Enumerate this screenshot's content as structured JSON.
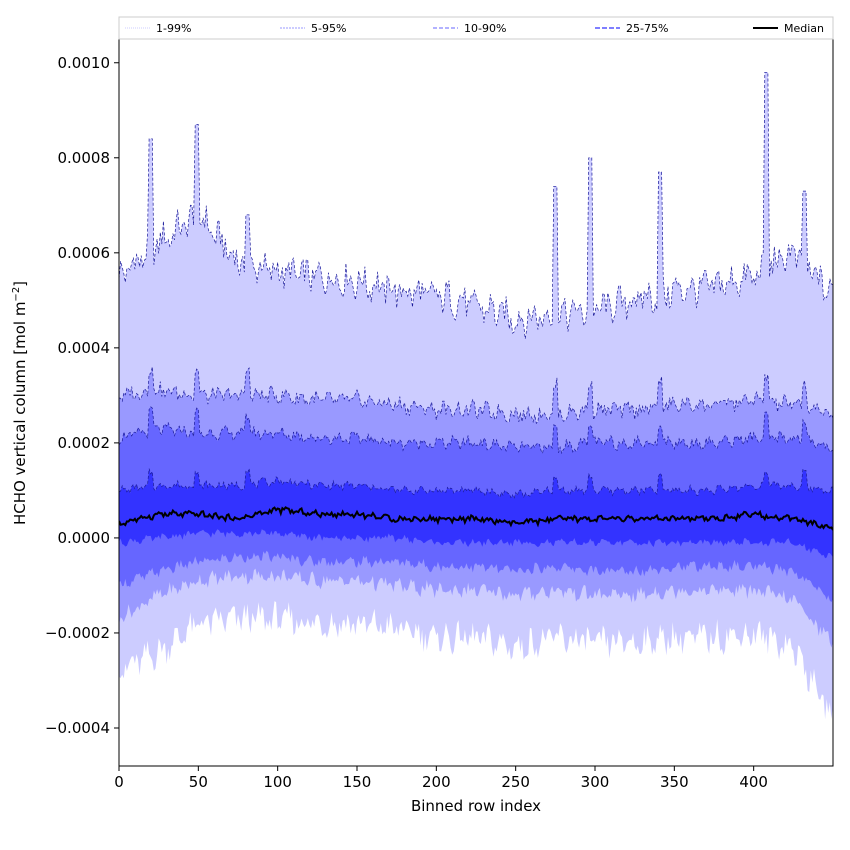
{
  "chart_data": {
    "type": "area",
    "xlabel": "Binned row index",
    "ylabel": "HCHO vertical column [mol m",
    "ylabel_sup": "−2",
    "ylabel_close": "]",
    "xlim": [
      0,
      450
    ],
    "ylim": [
      -0.00048,
      0.00105
    ],
    "xticks": [
      0,
      50,
      100,
      150,
      200,
      250,
      300,
      350,
      400
    ],
    "xtick_labels": [
      "0",
      "50",
      "100",
      "150",
      "200",
      "250",
      "300",
      "350",
      "400"
    ],
    "yticks": [
      -0.0004,
      -0.0002,
      0.0,
      0.0002,
      0.0004,
      0.0006,
      0.0008,
      0.001
    ],
    "ytick_labels": [
      "−0.0004",
      "−0.0002",
      "0.0000",
      "0.0002",
      "0.0004",
      "0.0006",
      "0.0008",
      "0.0010"
    ],
    "legend_position": "top",
    "series": [
      {
        "name": "1-99%",
        "color": "#ccccff",
        "x": [
          0,
          25,
          50,
          75,
          100,
          125,
          150,
          175,
          200,
          225,
          250,
          275,
          300,
          325,
          350,
          375,
          400,
          425,
          450
        ],
        "upper": [
          0.00055,
          0.00062,
          0.00068,
          0.00058,
          0.00056,
          0.00055,
          0.00054,
          0.00052,
          0.00051,
          0.00049,
          0.00046,
          0.00047,
          0.00048,
          0.0005,
          0.00052,
          0.00053,
          0.00055,
          0.0006,
          0.00051
        ],
        "lower": [
          -0.00028,
          -0.00024,
          -0.00018,
          -0.00017,
          -0.00017,
          -0.00018,
          -0.00018,
          -0.00019,
          -0.00021,
          -0.00021,
          -0.00023,
          -0.00021,
          -0.00022,
          -0.00022,
          -0.00021,
          -0.00021,
          -0.0002,
          -0.00023,
          -0.00038
        ]
      },
      {
        "name": "5-95%",
        "color": "#9999ff",
        "x": [
          0,
          25,
          50,
          75,
          100,
          125,
          150,
          175,
          200,
          225,
          250,
          275,
          300,
          325,
          350,
          375,
          400,
          425,
          450
        ],
        "upper": [
          0.0003,
          0.00031,
          0.0003,
          0.0003,
          0.0003,
          0.00029,
          0.00029,
          0.00028,
          0.00027,
          0.00027,
          0.00026,
          0.00026,
          0.00027,
          0.00027,
          0.00028,
          0.00028,
          0.00029,
          0.00028,
          0.00026
        ],
        "lower": [
          -0.00017,
          -0.00012,
          -9e-05,
          -8e-05,
          -8e-05,
          -9e-05,
          -9e-05,
          -0.0001,
          -0.00011,
          -0.00011,
          -0.00012,
          -0.00011,
          -0.00012,
          -0.00012,
          -0.00011,
          -0.00011,
          -0.00011,
          -0.00013,
          -0.00022
        ]
      },
      {
        "name": "10-90%",
        "color": "#6666ff",
        "x": [
          0,
          25,
          50,
          75,
          100,
          125,
          150,
          175,
          200,
          225,
          250,
          275,
          300,
          325,
          350,
          375,
          400,
          425,
          450
        ],
        "upper": [
          0.00021,
          0.00023,
          0.00022,
          0.00022,
          0.00022,
          0.00021,
          0.00021,
          0.0002,
          0.0002,
          0.0002,
          0.00019,
          0.00019,
          0.0002,
          0.0002,
          0.0002,
          0.0002,
          0.00021,
          0.00021,
          0.00019
        ],
        "lower": [
          -0.0001,
          -7e-05,
          -5e-05,
          -4e-05,
          -4e-05,
          -5e-05,
          -5e-05,
          -5e-05,
          -6e-05,
          -6e-05,
          -7e-05,
          -6e-05,
          -7e-05,
          -7e-05,
          -6e-05,
          -6e-05,
          -6e-05,
          -7e-05,
          -0.00013
        ]
      },
      {
        "name": "25-75%",
        "color": "#3333ff",
        "x": [
          0,
          25,
          50,
          75,
          100,
          125,
          150,
          175,
          200,
          225,
          250,
          275,
          300,
          325,
          350,
          375,
          400,
          425,
          450
        ],
        "upper": [
          0.0001,
          0.00011,
          0.00011,
          0.00011,
          0.00012,
          0.00011,
          0.00011,
          0.0001,
          0.0001,
          0.0001,
          9e-05,
          0.0001,
          0.0001,
          0.0001,
          0.0001,
          0.0001,
          0.00011,
          0.00011,
          0.0001
        ],
        "lower": [
          -1e-05,
          0.0,
          1e-05,
          1e-05,
          1e-05,
          0.0,
          0.0,
          0.0,
          -1e-05,
          -1e-05,
          -1e-05,
          -1e-05,
          -1e-05,
          -1e-05,
          -1e-05,
          -1e-05,
          -1e-05,
          -1e-05,
          -4e-05
        ]
      },
      {
        "name": "Median",
        "color": "#000000",
        "x": [
          0,
          25,
          50,
          75,
          100,
          125,
          150,
          175,
          200,
          225,
          250,
          275,
          300,
          325,
          350,
          375,
          400,
          425,
          450
        ],
        "values": [
          3e-05,
          5e-05,
          5e-05,
          4e-05,
          6e-05,
          5e-05,
          5e-05,
          4e-05,
          4e-05,
          4e-05,
          3e-05,
          4e-05,
          4e-05,
          4e-05,
          4e-05,
          4e-05,
          5e-05,
          4e-05,
          2e-05
        ]
      }
    ],
    "spikes": [
      {
        "x": 20,
        "upper_1_99": 0.00084
      },
      {
        "x": 49,
        "upper_1_99": 0.00087
      },
      {
        "x": 81,
        "upper_1_99": 0.00068
      },
      {
        "x": 275,
        "upper_1_99": 0.00074
      },
      {
        "x": 297,
        "upper_1_99": 0.0008
      },
      {
        "x": 341,
        "upper_1_99": 0.00077
      },
      {
        "x": 408,
        "upper_1_99": 0.00098
      },
      {
        "x": 432,
        "upper_1_99": 0.00073
      }
    ]
  }
}
